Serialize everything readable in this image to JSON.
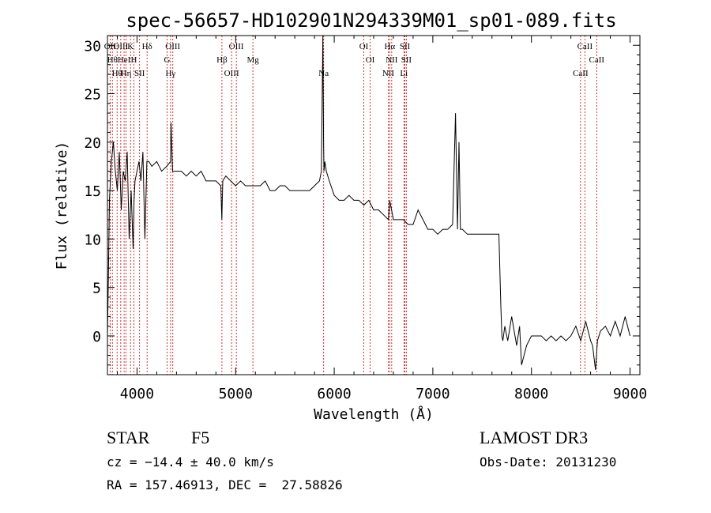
{
  "chart_data": {
    "type": "line",
    "title": "spec-56657-HD102901N294339M01_sp01-089.fits",
    "xlabel": "Wavelength (Å)",
    "ylabel": "Flux (relative)",
    "xlim": [
      3700,
      9100
    ],
    "ylim": [
      -4,
      31
    ],
    "xticks": [
      4000,
      5000,
      6000,
      7000,
      8000,
      9000
    ],
    "yticks": [
      0,
      5,
      10,
      15,
      20,
      25,
      30
    ],
    "series": [
      {
        "x": [
          3700,
          3710,
          3720,
          3740,
          3760,
          3780,
          3800,
          3820,
          3840,
          3860,
          3880,
          3900,
          3920,
          3940,
          3960,
          3970,
          3980,
          4000,
          4020,
          4040,
          4060,
          4080,
          4100,
          4120,
          4150,
          4200,
          4250,
          4300,
          4340,
          4345,
          4360,
          4400,
          4450,
          4500,
          4550,
          4600,
          4650,
          4700,
          4750,
          4800,
          4850,
          4860,
          4870,
          4900,
          4950,
          5000,
          5050,
          5100,
          5150,
          5200,
          5250,
          5300,
          5350,
          5400,
          5450,
          5500,
          5550,
          5600,
          5650,
          5700,
          5750,
          5800,
          5850,
          5870,
          5885,
          5892,
          5896,
          5905,
          5920,
          5950,
          6000,
          6050,
          6100,
          6150,
          6200,
          6250,
          6300,
          6350,
          6400,
          6450,
          6500,
          6550,
          6563,
          6600,
          6650,
          6700,
          6750,
          6800,
          6850,
          6900,
          6950,
          7000,
          7050,
          7100,
          7150,
          7200,
          7230,
          7250,
          7265,
          7280,
          7300,
          7350,
          7400,
          7450,
          7500,
          7550,
          7600,
          7650,
          7670,
          7690,
          7700,
          7710,
          7730,
          7760,
          7800,
          7850,
          7880,
          7900,
          7950,
          8000,
          8050,
          8100,
          8150,
          8200,
          8250,
          8300,
          8350,
          8400,
          8450,
          8500,
          8550,
          8600,
          8620,
          8650,
          8670,
          8700,
          8750,
          8800,
          8850,
          8900,
          8950,
          9000
        ],
        "y": [
          0,
          6,
          14,
          18,
          20,
          17,
          15,
          19,
          13,
          17,
          16,
          19,
          10,
          15,
          9,
          14,
          16,
          17,
          18,
          16,
          19,
          10,
          18,
          18,
          17.5,
          18,
          17,
          17.5,
          18,
          22,
          17,
          17,
          17,
          16.5,
          17,
          16.5,
          17,
          16,
          16,
          16,
          15.5,
          12,
          16,
          16.5,
          16,
          15.5,
          16,
          15.5,
          15.5,
          15.5,
          15.5,
          16,
          15,
          15,
          15.5,
          15.5,
          15,
          15,
          15,
          15,
          15,
          15.5,
          16,
          17,
          31,
          20,
          17,
          18,
          17,
          16,
          14.5,
          14,
          14,
          14.5,
          14,
          14,
          13.5,
          14,
          13,
          13,
          12.5,
          12,
          14,
          12,
          12,
          12,
          11.5,
          11.5,
          13,
          12,
          11,
          11,
          10.5,
          11,
          11,
          11.5,
          23,
          11,
          20,
          11,
          11,
          10.5,
          10.5,
          10.5,
          10.5,
          10.5,
          10.5,
          10.5,
          10.5,
          3,
          0,
          -0.5,
          1,
          -0.5,
          2,
          -1,
          1,
          -3,
          -1,
          0,
          0,
          0,
          -0.5,
          0,
          -0.5,
          0,
          -0.5,
          0,
          1,
          -0.5,
          1.5,
          -0.5,
          -1,
          -3.5,
          -0.5,
          0.5,
          1,
          0,
          1.5,
          0,
          2,
          0
        ]
      }
    ],
    "lines": [
      {
        "x": 3727,
        "label": "OII"
      },
      {
        "x": 3750,
        "label": "Hθ"
      },
      {
        "x": 3798,
        "label": "Hθ"
      },
      {
        "x": 3835,
        "label": "OIII"
      },
      {
        "x": 3869,
        "label": "HeI"
      },
      {
        "x": 3889,
        "label": "Hη"
      },
      {
        "x": 3934,
        "label": "K"
      },
      {
        "x": 3968,
        "label": "H"
      },
      {
        "x": 4026,
        "label": "SII"
      },
      {
        "x": 4102,
        "label": "Hδ"
      },
      {
        "x": 4305,
        "label": "G"
      },
      {
        "x": 4340,
        "label": "Hγ"
      },
      {
        "x": 4363,
        "label": "OIII"
      },
      {
        "x": 4861,
        "label": "Hβ"
      },
      {
        "x": 4959,
        "label": "OIII"
      },
      {
        "x": 5007,
        "label": "OIII"
      },
      {
        "x": 5175,
        "label": "Mg"
      },
      {
        "x": 5893,
        "label": "Na"
      },
      {
        "x": 6300,
        "label": "OI"
      },
      {
        "x": 6364,
        "label": "OI"
      },
      {
        "x": 6548,
        "label": "NII"
      },
      {
        "x": 6563,
        "label": "Hα"
      },
      {
        "x": 6583,
        "label": "NII"
      },
      {
        "x": 6707,
        "label": "Li"
      },
      {
        "x": 6717,
        "label": "SII"
      },
      {
        "x": 6731,
        "label": "SII"
      },
      {
        "x": 8498,
        "label": "CaII"
      },
      {
        "x": 8542,
        "label": "CaII"
      },
      {
        "x": 8662,
        "label": "CaII"
      }
    ]
  },
  "info": {
    "object_class": "STAR",
    "subclass": "F5",
    "survey": "LAMOST DR3",
    "redshift": "cz = −14.4 ± 40.0 km/s",
    "obs_date": "Obs-Date: 20131230",
    "coords": "RA = 157.46913, DEC =  27.58826"
  },
  "colors": {
    "spectrum": "#000000",
    "line_markers": "#cc0000",
    "text": "#000000"
  }
}
